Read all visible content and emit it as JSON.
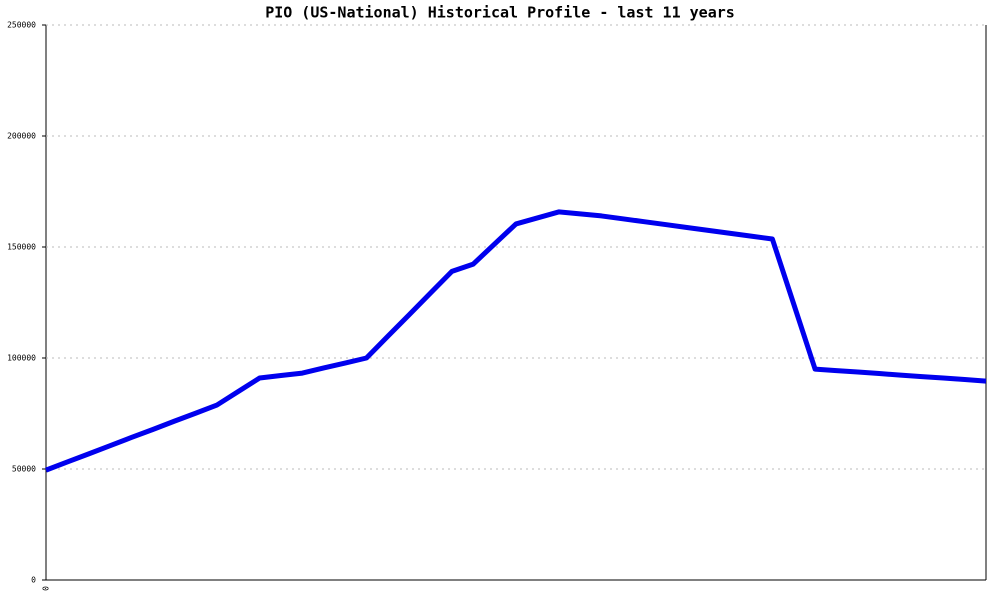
{
  "chart_data": {
    "type": "line",
    "title": "PIO (US-National) Historical Profile - last 11 years",
    "categories": [
      "0",
      null,
      null,
      null,
      null,
      null,
      null,
      null,
      null,
      null,
      null,
      null,
      null,
      null,
      null,
      null,
      null,
      null,
      null,
      null,
      null,
      null,
      null,
      null,
      null,
      null,
      null,
      null,
      null,
      null,
      null,
      null,
      null,
      null,
      null,
      null,
      null,
      null,
      null,
      null,
      null,
      null,
      null,
      null,
      null
    ],
    "series": [
      {
        "color": "#0000ee",
        "values": [
          49500,
          53200,
          56800,
          60500,
          64200,
          67800,
          71500,
          75100,
          78800,
          84900,
          91000,
          92100,
          93200,
          95500,
          97700,
          100000,
          109800,
          119500,
          129300,
          139000,
          142300,
          151400,
          160400,
          163100,
          165800,
          164900,
          164000,
          162700,
          161400,
          160100,
          158800,
          157500,
          156200,
          154900,
          153600,
          124300,
          95000,
          94300,
          93700,
          93000,
          92300,
          91600,
          91000,
          90300,
          89600
        ]
      }
    ],
    "ylim": [
      0,
      250000
    ],
    "yticks": [
      0,
      50000,
      100000,
      150000,
      200000,
      250000
    ],
    "grid": true
  }
}
